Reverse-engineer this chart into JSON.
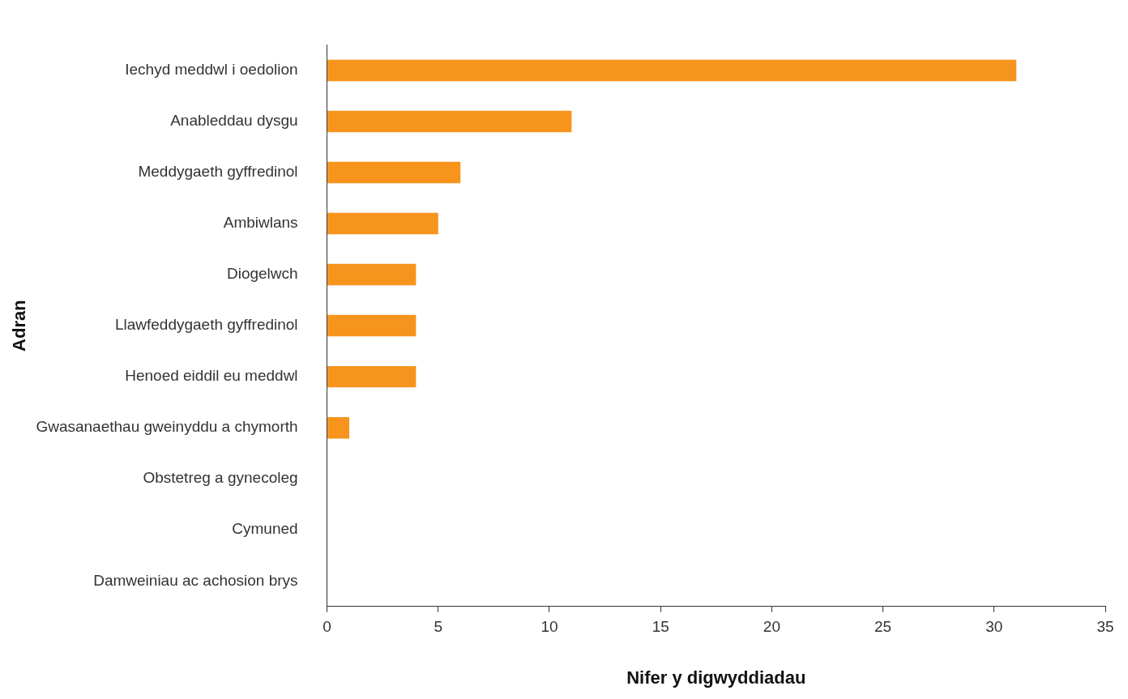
{
  "chart_data": {
    "type": "bar",
    "orientation": "horizontal",
    "xlabel": "Nifer y digwyddiadau",
    "ylabel": "Adran",
    "categories": [
      "Iechyd meddwl i oedolion",
      "Anableddau dysgu",
      "Meddygaeth gyffredinol",
      "Ambiwlans",
      "Diogelwch",
      "Llawfeddygaeth gyffredinol",
      "Henoed eiddil eu meddwl",
      "Gwasanaethau gweinyddu a chymorth",
      "Obstetreg a gynecoleg",
      "Cymuned",
      "Damweiniau ac achosion brys"
    ],
    "values": [
      31,
      11,
      6,
      5,
      4,
      4,
      4,
      1,
      0,
      0,
      0
    ],
    "color": "#f7941d",
    "xlim": [
      0,
      35
    ],
    "xticks": [
      0,
      5,
      10,
      15,
      20,
      25,
      30,
      35
    ],
    "grid": false,
    "legend": false
  }
}
